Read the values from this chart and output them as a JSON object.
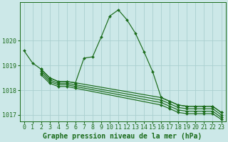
{
  "xlabel": "Graphe pression niveau de la mer (hPa)",
  "bg_color": "#cce8e8",
  "grid_color": "#aad0d0",
  "line_color": "#1a6b1a",
  "ylim": [
    1016.75,
    1021.55
  ],
  "xlim": [
    -0.5,
    23.5
  ],
  "yticks": [
    1017,
    1018,
    1019,
    1020
  ],
  "xticks": [
    0,
    1,
    2,
    3,
    4,
    5,
    6,
    7,
    8,
    9,
    10,
    11,
    12,
    13,
    14,
    15,
    16,
    17,
    18,
    19,
    20,
    21,
    22,
    23
  ],
  "main_line": {
    "x": [
      0,
      1,
      2,
      3,
      4,
      5,
      6,
      7,
      8,
      9,
      10,
      11,
      12,
      13,
      14,
      15,
      16,
      17,
      18,
      19,
      20,
      21,
      22,
      23
    ],
    "y": [
      1019.6,
      1019.1,
      1018.85,
      1018.5,
      1018.35,
      1018.35,
      1018.3,
      1019.3,
      1019.35,
      1020.15,
      1021.0,
      1021.25,
      1020.85,
      1020.3,
      1019.55,
      1018.75,
      1017.7,
      1017.55,
      1017.4,
      1017.35,
      1017.35,
      1017.35,
      1017.35,
      1017.1
    ]
  },
  "flat_lines": [
    {
      "x": [
        2,
        3,
        4,
        5,
        6,
        16,
        17,
        18,
        19,
        20,
        21,
        22,
        23
      ],
      "y": [
        1018.85,
        1018.5,
        1018.35,
        1018.35,
        1018.3,
        1017.7,
        1017.55,
        1017.4,
        1017.35,
        1017.35,
        1017.35,
        1017.35,
        1017.1
      ]
    },
    {
      "x": [
        2,
        3,
        4,
        5,
        6,
        16,
        17,
        18,
        19,
        20,
        21,
        22,
        23
      ],
      "y": [
        1018.78,
        1018.42,
        1018.28,
        1018.28,
        1018.22,
        1017.6,
        1017.45,
        1017.3,
        1017.25,
        1017.25,
        1017.25,
        1017.25,
        1017.0
      ]
    },
    {
      "x": [
        2,
        3,
        4,
        5,
        6,
        16,
        17,
        18,
        19,
        20,
        21,
        22,
        23
      ],
      "y": [
        1018.7,
        1018.35,
        1018.22,
        1018.22,
        1018.15,
        1017.5,
        1017.35,
        1017.2,
        1017.15,
        1017.15,
        1017.15,
        1017.15,
        1016.9
      ]
    },
    {
      "x": [
        2,
        3,
        4,
        5,
        6,
        16,
        17,
        18,
        19,
        20,
        21,
        22,
        23
      ],
      "y": [
        1018.62,
        1018.28,
        1018.15,
        1018.15,
        1018.08,
        1017.4,
        1017.25,
        1017.1,
        1017.05,
        1017.05,
        1017.05,
        1017.05,
        1016.82
      ]
    }
  ],
  "tick_fontsize": 6.0,
  "label_fontsize": 7.0
}
